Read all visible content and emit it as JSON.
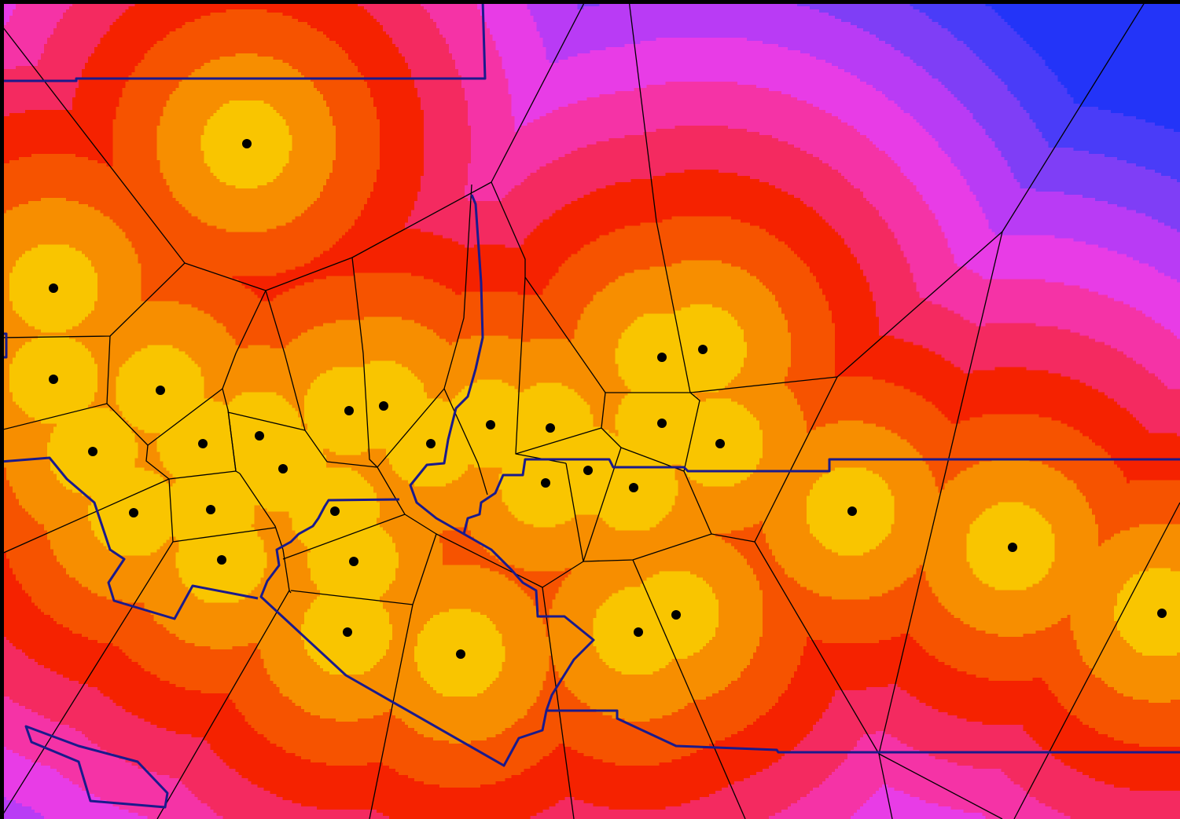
{
  "map": {
    "ring_colors": [
      "#f9c500",
      "#f78e00",
      "#f65300",
      "#f52200",
      "#f42a60",
      "#f533a6",
      "#e83ce6",
      "#b93bf5",
      "#7f3ef6",
      "#4a3cf8",
      "#2334f8"
    ],
    "site_color": "#000000",
    "cell_edge_color": "#000000",
    "boundary_color": "#1a1a8c",
    "frame_color": "#000000"
  }
}
